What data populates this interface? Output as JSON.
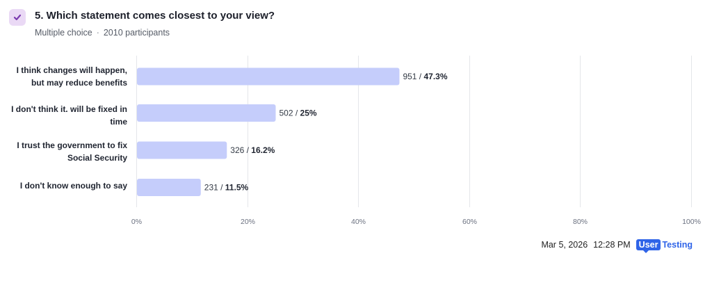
{
  "question": {
    "title": "5. Which statement comes closest to your view?",
    "type": "Multiple choice",
    "separator": "·",
    "participants": "2010 participants"
  },
  "colors": {
    "bar": "#c5cdfb",
    "grid": "#e4e6ea",
    "badge_bg": "#ead9f5",
    "badge_check": "#7b3bb0",
    "brand": "#2f64e8"
  },
  "chart_data": {
    "type": "bar",
    "orientation": "horizontal",
    "categories": [
      "I think changes will happen, but may reduce benefits",
      "I don't think it. will be fixed in time",
      "I trust the government to fix Social Security",
      "I don't know enough to say"
    ],
    "counts": [
      951,
      502,
      326,
      231
    ],
    "values": [
      47.3,
      25,
      16.2,
      11.5
    ],
    "value_labels": [
      "47.3%",
      "25%",
      "16.2%",
      "11.5%"
    ],
    "xlim": [
      0,
      100
    ],
    "xticks": [
      "0%",
      "20%",
      "40%",
      "60%",
      "80%",
      "100%"
    ],
    "xtick_values": [
      0,
      20,
      40,
      60,
      80,
      100
    ],
    "grid": true
  },
  "footer": {
    "date": "Mar 5, 2026",
    "time": "12:28 PM",
    "brand_user": "User",
    "brand_testing": "Testing"
  }
}
